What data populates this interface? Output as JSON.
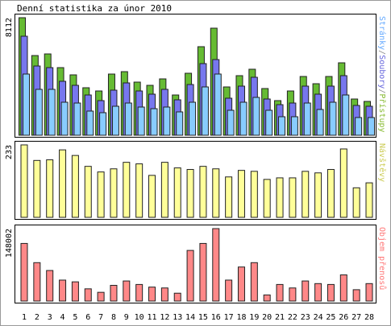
{
  "chart_data": {
    "type": "bar",
    "title": "Denní statistika za únor 2010",
    "categories": [
      "1",
      "2",
      "3",
      "4",
      "5",
      "6",
      "7",
      "8",
      "9",
      "10",
      "11",
      "12",
      "13",
      "14",
      "15",
      "16",
      "17",
      "18",
      "19",
      "20",
      "21",
      "22",
      "23",
      "24",
      "25",
      "26",
      "27",
      "28"
    ],
    "category_colors": [
      "#000",
      "#000",
      "#000",
      "#000",
      "#000",
      "#66aa22",
      "#66aa22",
      "#000",
      "#000",
      "#000",
      "#000",
      "#000",
      "#66aa22",
      "#66aa22",
      "#000",
      "#000",
      "#000",
      "#000",
      "#000",
      "#66aa22",
      "#66aa22",
      "#000",
      "#000",
      "#000",
      "#000",
      "#000",
      "#66aa22",
      "#66aa22"
    ],
    "legend_separator": "/",
    "panels": [
      {
        "ylim": [
          0,
          8112
        ],
        "yticks": [
          8112
        ],
        "series": [
          {
            "name": "Přístupy",
            "color": "#66bb33",
            "legend_color": "#88bb33",
            "values": [
              8112,
              5500,
              5612,
              4667,
              4167,
              3278,
              3056,
              4223,
              4389,
              3667,
              3445,
              3889,
              2778,
              4278,
              6112,
              7390,
              3334,
              4112,
              4556,
              3223,
              2389,
              3056,
              4056,
              3556,
              4056,
              5000,
              2500,
              2334
            ]
          },
          {
            "name": "Soubory",
            "color": "#7777ee",
            "legend_color": "#6666dd",
            "values": [
              6834,
              4778,
              4667,
              3723,
              3445,
              2778,
              2389,
              3111,
              3611,
              3056,
              2834,
              3167,
              2445,
              3500,
              4945,
              5223,
              2556,
              3389,
              4000,
              2500,
              2111,
              2222,
              3389,
              2834,
              3389,
              4112,
              2056,
              2000
            ]
          },
          {
            "name": "Stránky",
            "color": "#88ccff",
            "legend_color": "#66aaff",
            "values": [
              4223,
              3167,
              3167,
              2278,
              2222,
              1667,
              1556,
              2000,
              2222,
              1945,
              1833,
              1945,
              1611,
              2278,
              3334,
              4223,
              1722,
              2278,
              2611,
              1722,
              1278,
              1278,
              2222,
              1778,
              2278,
              2778,
              1222,
              1222
            ]
          }
        ]
      },
      {
        "ylim": [
          0,
          233
        ],
        "yticks": [
          233
        ],
        "series": [
          {
            "name": "Návštěvy",
            "color": "#ffff99",
            "legend_color": "#cccc55",
            "values": [
              233,
              183,
              185,
              217,
              199,
              164,
              146,
              156,
              177,
              172,
              135,
              177,
              159,
              154,
              164,
              156,
              130,
              151,
              148,
              122,
              127,
              127,
              148,
              143,
              154,
              220,
              95,
              111
            ]
          }
        ]
      },
      {
        "ylim": [
          0,
          148002
        ],
        "yticks": [
          148002
        ],
        "series": [
          {
            "name": "Objem přenosů",
            "color": "#ff8888",
            "legend_color": "#ff7777",
            "values": [
              117700,
              78460,
              62410,
              42800,
              39230,
              24960,
              17830,
              32100,
              41010,
              33880,
              28530,
              26750,
              16050,
              103430,
              117700,
              148002,
              42800,
              69550,
              78460,
              12480,
              33880,
              26750,
              41010,
              35670,
              33880,
              53500,
              23180,
              35670
            ]
          }
        ]
      }
    ]
  }
}
